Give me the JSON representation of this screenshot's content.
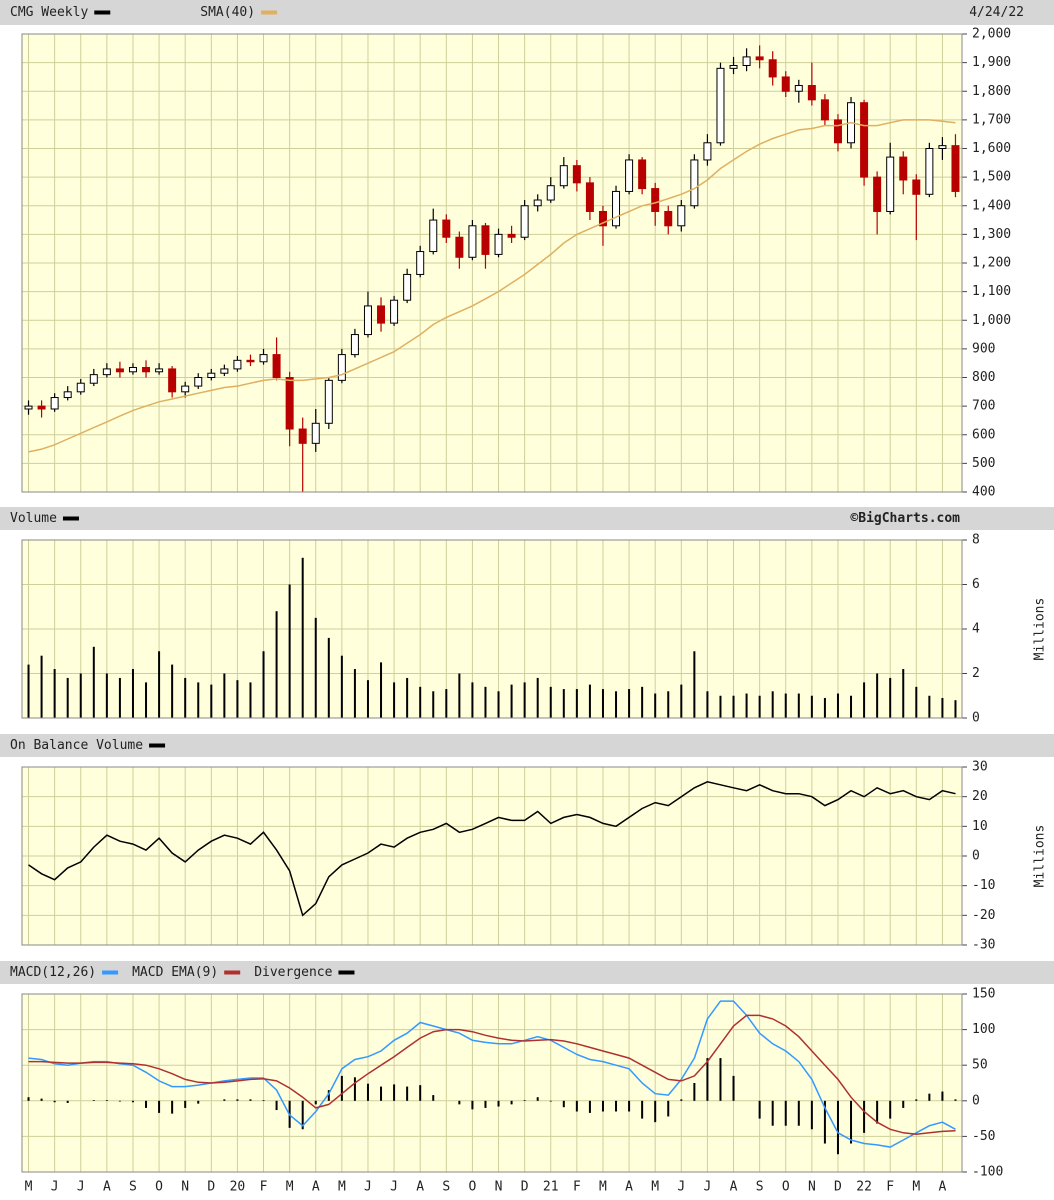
{
  "chart_data": [
    {
      "type": "candlestick",
      "annotation": "4/24/22",
      "grid": true,
      "ylim": [
        400,
        2000
      ],
      "yticks": [
        400,
        500,
        600,
        700,
        800,
        900,
        {
          "value": 1000,
          "label": "1,000"
        },
        {
          "value": 1100,
          "label": "1,100"
        },
        {
          "value": 1200,
          "label": "1,200"
        },
        {
          "value": 1300,
          "label": "1,300"
        },
        {
          "value": 1400,
          "label": "1,400"
        },
        {
          "value": 1500,
          "label": "1,500"
        },
        {
          "value": 1600,
          "label": "1,600"
        },
        {
          "value": 1700,
          "label": "1,700"
        },
        {
          "value": 1800,
          "label": "1,800"
        },
        {
          "value": 1900,
          "label": "1,900"
        },
        {
          "value": 2000,
          "label": "2,000"
        }
      ],
      "series": [
        {
          "name": "CMG Weekly",
          "type": "candlestick",
          "color": "#000000",
          "down_color": "#b80000",
          "open": [
            690,
            700,
            690,
            730,
            750,
            780,
            810,
            830,
            820,
            835,
            820,
            830,
            750,
            770,
            800,
            815,
            830,
            860,
            855,
            880,
            800,
            620,
            570,
            640,
            790,
            880,
            950,
            1050,
            990,
            1070,
            1160,
            1240,
            1350,
            1290,
            1220,
            1330,
            1230,
            1300,
            1290,
            1400,
            1420,
            1470,
            1540,
            1480,
            1380,
            1330,
            1450,
            1560,
            1460,
            1380,
            1330,
            1400,
            1560,
            1620,
            1880,
            1890,
            1920,
            1910,
            1850,
            1800,
            1820,
            1770,
            1700,
            1620,
            1760,
            1500,
            1380,
            1570,
            1490,
            1440,
            1600,
            1610
          ],
          "high": [
            720,
            720,
            745,
            770,
            795,
            830,
            850,
            855,
            850,
            860,
            850,
            840,
            785,
            815,
            830,
            845,
            875,
            880,
            900,
            940,
            820,
            660,
            690,
            800,
            900,
            970,
            1100,
            1080,
            1085,
            1180,
            1260,
            1390,
            1370,
            1310,
            1350,
            1340,
            1320,
            1330,
            1420,
            1440,
            1500,
            1570,
            1560,
            1500,
            1400,
            1470,
            1580,
            1570,
            1480,
            1400,
            1420,
            1580,
            1650,
            1900,
            1920,
            1950,
            1960,
            1940,
            1870,
            1840,
            1900,
            1790,
            1720,
            1780,
            1770,
            1520,
            1620,
            1590,
            1510,
            1620,
            1640,
            1650
          ],
          "low": [
            670,
            660,
            680,
            720,
            740,
            770,
            800,
            800,
            810,
            800,
            810,
            730,
            730,
            760,
            790,
            805,
            820,
            840,
            845,
            790,
            560,
            400,
            540,
            620,
            780,
            870,
            940,
            960,
            980,
            1060,
            1150,
            1230,
            1270,
            1180,
            1210,
            1180,
            1220,
            1270,
            1280,
            1380,
            1410,
            1460,
            1450,
            1350,
            1260,
            1320,
            1440,
            1440,
            1330,
            1300,
            1310,
            1390,
            1540,
            1610,
            1860,
            1870,
            1880,
            1820,
            1780,
            1760,
            1750,
            1680,
            1590,
            1600,
            1470,
            1300,
            1370,
            1440,
            1280,
            1430,
            1560,
            1430
          ],
          "close": [
            700,
            690,
            730,
            750,
            780,
            810,
            830,
            820,
            835,
            820,
            830,
            750,
            770,
            800,
            815,
            830,
            860,
            855,
            880,
            800,
            620,
            570,
            640,
            790,
            880,
            950,
            1050,
            990,
            1070,
            1160,
            1240,
            1350,
            1290,
            1220,
            1330,
            1230,
            1300,
            1290,
            1400,
            1420,
            1470,
            1540,
            1480,
            1380,
            1330,
            1450,
            1560,
            1460,
            1380,
            1330,
            1400,
            1560,
            1620,
            1880,
            1890,
            1920,
            1910,
            1850,
            1800,
            1820,
            1770,
            1700,
            1620,
            1760,
            1500,
            1380,
            1570,
            1490,
            1440,
            1600,
            1610,
            1450
          ]
        },
        {
          "name": "SMA(40)",
          "type": "line",
          "color": "#e0b060",
          "values": [
            540,
            550,
            565,
            585,
            605,
            625,
            645,
            665,
            685,
            700,
            715,
            725,
            735,
            745,
            755,
            765,
            770,
            780,
            790,
            795,
            790,
            790,
            795,
            800,
            810,
            830,
            850,
            870,
            890,
            920,
            950,
            985,
            1010,
            1030,
            1050,
            1075,
            1100,
            1130,
            1160,
            1195,
            1230,
            1270,
            1300,
            1320,
            1340,
            1360,
            1380,
            1400,
            1410,
            1425,
            1440,
            1460,
            1490,
            1530,
            1560,
            1590,
            1615,
            1635,
            1650,
            1665,
            1670,
            1680,
            1680,
            1690,
            1680,
            1680,
            1690,
            1700,
            1700,
            1700,
            1695,
            1690
          ]
        }
      ]
    },
    {
      "type": "bar",
      "annotation": "©BigCharts.com",
      "y_label": "Millions",
      "grid": true,
      "ylim": [
        0,
        8
      ],
      "yticks": [
        0,
        2,
        4,
        6,
        8
      ],
      "series": [
        {
          "name": "Volume",
          "type": "bar",
          "color": "#000000",
          "values": [
            2.4,
            2.8,
            2.2,
            1.8,
            2.0,
            3.2,
            2.0,
            1.8,
            2.2,
            1.6,
            3.0,
            2.4,
            1.8,
            1.6,
            1.5,
            2.0,
            1.7,
            1.6,
            3.0,
            4.8,
            6.0,
            7.2,
            4.5,
            3.6,
            2.8,
            2.2,
            1.7,
            2.5,
            1.6,
            1.8,
            1.4,
            1.2,
            1.3,
            2.0,
            1.6,
            1.4,
            1.2,
            1.5,
            1.6,
            1.8,
            1.4,
            1.3,
            1.3,
            1.5,
            1.3,
            1.2,
            1.3,
            1.4,
            1.1,
            1.2,
            1.5,
            3.0,
            1.2,
            1.0,
            1.0,
            1.1,
            1.0,
            1.2,
            1.1,
            1.1,
            1.0,
            0.9,
            1.1,
            1.0,
            1.6,
            2.0,
            1.8,
            2.2,
            1.4,
            1.0,
            0.9,
            0.8
          ]
        }
      ]
    },
    {
      "type": "line",
      "y_label": "Millions",
      "grid": true,
      "ylim": [
        -30,
        30
      ],
      "yticks": [
        -30,
        -20,
        -10,
        0,
        10,
        20,
        30
      ],
      "series": [
        {
          "name": "On Balance Volume",
          "type": "line",
          "color": "#000000",
          "values": [
            -3,
            -6,
            -8,
            -4,
            -2,
            3,
            7,
            5,
            4,
            2,
            6,
            1,
            -2,
            2,
            5,
            7,
            6,
            4,
            8,
            2,
            -5,
            -20,
            -16,
            -7,
            -3,
            -1,
            1,
            4,
            3,
            6,
            8,
            9,
            11,
            8,
            9,
            11,
            13,
            12,
            12,
            15,
            11,
            13,
            14,
            13,
            11,
            10,
            13,
            16,
            18,
            17,
            20,
            23,
            25,
            24,
            23,
            22,
            24,
            22,
            21,
            21,
            20,
            17,
            19,
            22,
            20,
            23,
            21,
            22,
            20,
            19,
            22,
            21
          ]
        }
      ]
    },
    {
      "type": "macd",
      "grid": true,
      "ylim": [
        -100,
        150
      ],
      "yticks": [
        -100,
        -50,
        0,
        50,
        100,
        150
      ],
      "categories": [
        "M",
        null,
        "J",
        null,
        "J",
        null,
        "A",
        null,
        "S",
        null,
        "O",
        null,
        "N",
        null,
        "D",
        null,
        "20",
        null,
        "F",
        null,
        "M",
        null,
        "A",
        null,
        "M",
        null,
        "J",
        null,
        "J",
        null,
        "A",
        null,
        "S",
        null,
        "O",
        null,
        "N",
        null,
        "D",
        null,
        "21",
        null,
        "F",
        null,
        "M",
        null,
        "A",
        null,
        "M",
        null,
        "J",
        null,
        "J",
        null,
        "A",
        null,
        "S",
        null,
        "O",
        null,
        "N",
        null,
        "D",
        null,
        "22",
        null,
        "F",
        null,
        "M",
        null,
        "A",
        null
      ],
      "series": [
        {
          "name": "MACD(12,26)",
          "type": "line",
          "color": "#3399ff",
          "values": [
            60,
            58,
            52,
            50,
            53,
            55,
            55,
            52,
            50,
            40,
            28,
            20,
            20,
            22,
            25,
            28,
            30,
            32,
            32,
            15,
            -20,
            -35,
            -15,
            10,
            45,
            58,
            62,
            70,
            85,
            95,
            110,
            105,
            100,
            95,
            85,
            82,
            80,
            80,
            85,
            90,
            85,
            75,
            65,
            58,
            55,
            50,
            45,
            25,
            10,
            8,
            30,
            60,
            115,
            140,
            140,
            120,
            95,
            80,
            70,
            55,
            30,
            -10,
            -45,
            -55,
            -60,
            -62,
            -65,
            -55,
            -45,
            -35,
            -30,
            -40
          ]
        },
        {
          "name": "MACD EMA(9)",
          "type": "line",
          "color": "#b03030",
          "values": [
            55,
            55,
            54,
            53,
            53,
            54,
            54,
            53,
            52,
            50,
            45,
            38,
            30,
            26,
            25,
            26,
            28,
            30,
            31,
            28,
            18,
            5,
            -10,
            -5,
            10,
            25,
            38,
            50,
            62,
            75,
            88,
            97,
            100,
            100,
            97,
            92,
            88,
            85,
            84,
            85,
            86,
            84,
            80,
            75,
            70,
            65,
            60,
            50,
            40,
            30,
            28,
            35,
            55,
            80,
            105,
            120,
            120,
            115,
            105,
            90,
            70,
            50,
            30,
            5,
            -15,
            -30,
            -40,
            -45,
            -47,
            -45,
            -43,
            -42
          ]
        },
        {
          "name": "Divergence",
          "type": "bar",
          "color": "#000000",
          "values": [
            5,
            3,
            -2,
            -3,
            0,
            1,
            1,
            -1,
            -2,
            -10,
            -17,
            -18,
            -10,
            -4,
            0,
            2,
            2,
            2,
            1,
            -13,
            -38,
            -40,
            -5,
            15,
            35,
            33,
            24,
            20,
            23,
            20,
            22,
            8,
            0,
            -5,
            -12,
            -10,
            -8,
            -5,
            1,
            5,
            -1,
            -9,
            -15,
            -17,
            -15,
            -15,
            -15,
            -25,
            -30,
            -22,
            2,
            25,
            60,
            60,
            35,
            0,
            -25,
            -35,
            -35,
            -35,
            -40,
            -60,
            -75,
            -60,
            -45,
            -32,
            -25,
            -10,
            2,
            10,
            13,
            2
          ]
        }
      ]
    }
  ]
}
